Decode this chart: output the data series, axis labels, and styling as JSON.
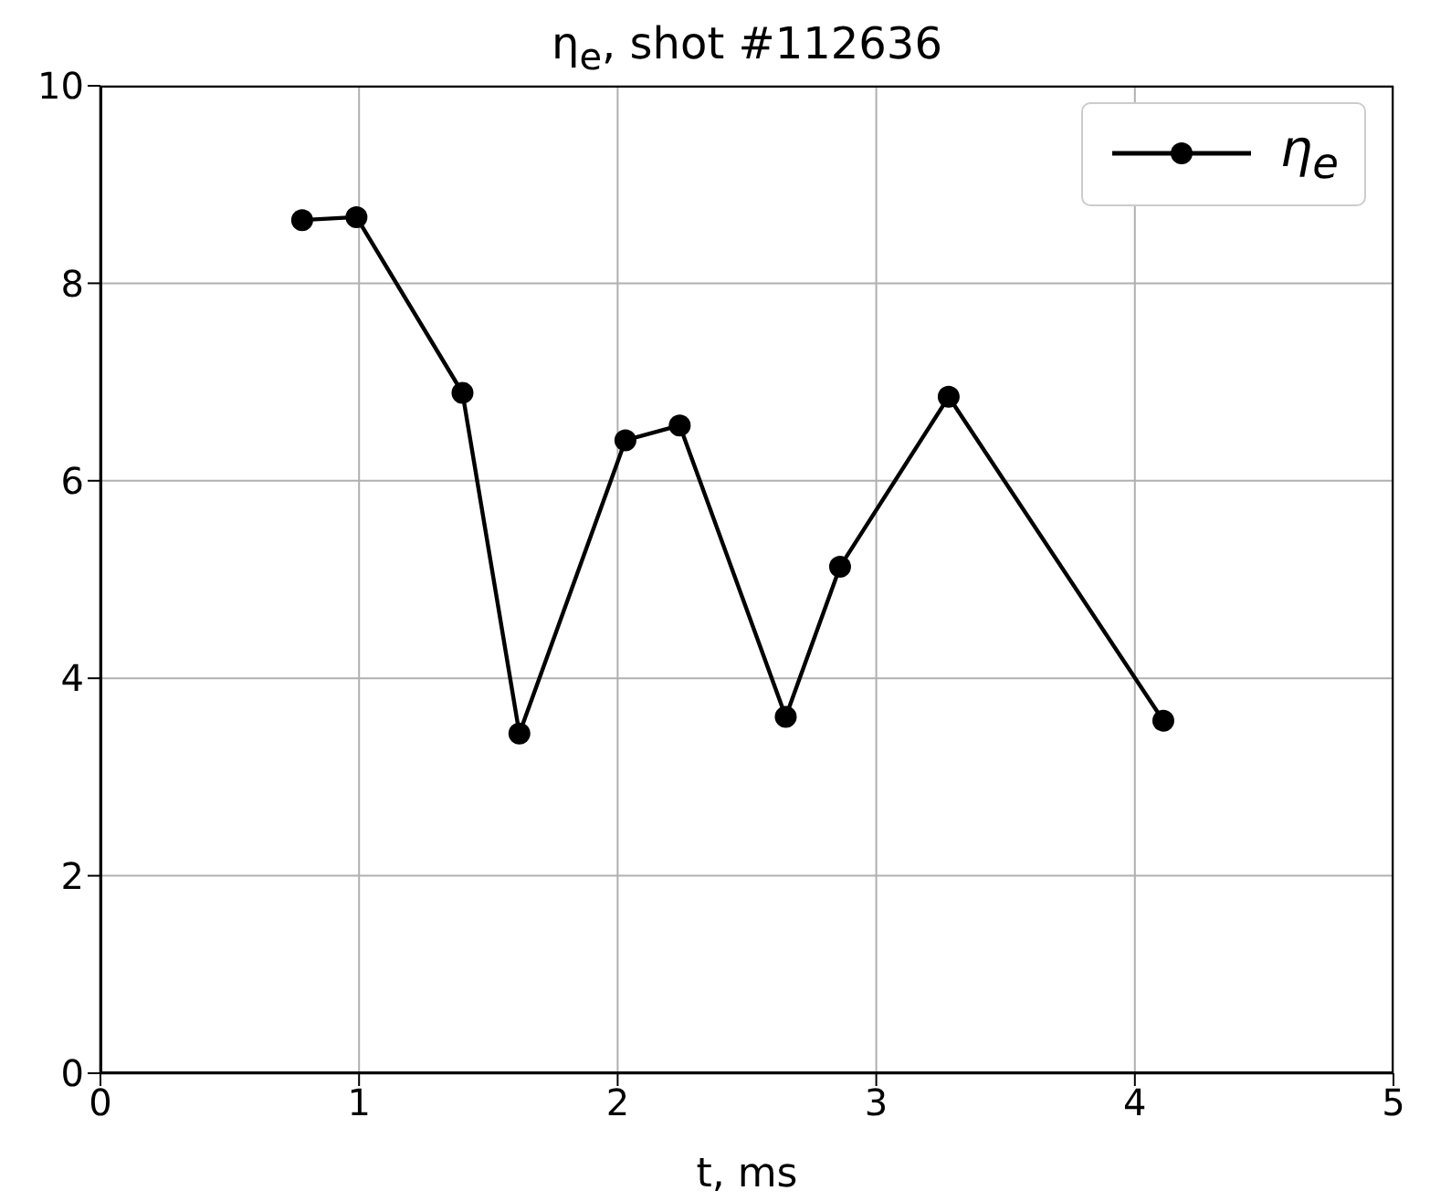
{
  "chart_data": {
    "type": "line",
    "title": "η$_{e}$, shot #112636",
    "xlabel": "t, ms",
    "x": [
      0.78,
      0.99,
      1.4,
      1.62,
      2.03,
      2.24,
      2.65,
      2.86,
      3.28,
      4.11
    ],
    "series": [
      {
        "name": "η$_{e}$",
        "color": "#000000",
        "values": [
          8.64,
          8.67,
          6.89,
          3.44,
          6.41,
          6.56,
          3.61,
          5.13,
          6.85,
          3.57
        ]
      }
    ],
    "xlim": [
      0,
      5
    ],
    "xticks": [
      0,
      1,
      2,
      3,
      4,
      5
    ],
    "ylim": [
      0,
      10
    ],
    "yticks": [
      0,
      2,
      4,
      6,
      8,
      10
    ],
    "grid": true,
    "legend": "top right",
    "marker": "circle",
    "line_style": "solid"
  }
}
